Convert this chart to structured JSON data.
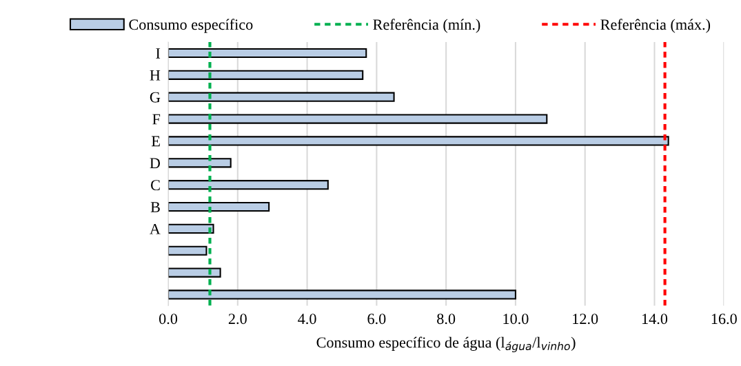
{
  "chart_data": {
    "type": "bar",
    "orientation": "horizontal",
    "xlabel": "Consumo específico de água (l$_{água}$/l$_{vinho}$)",
    "categories": [
      "I",
      "H",
      "G",
      "F",
      "E",
      "D",
      "C",
      "B",
      "A",
      null,
      null,
      null
    ],
    "series": [
      {
        "name": "Consumo específico",
        "color": "#b9cde5",
        "values": [
          5.7,
          5.6,
          6.5,
          10.9,
          14.4,
          1.8,
          4.6,
          2.9,
          1.3,
          1.1,
          1.5,
          10.0
        ]
      }
    ],
    "ref_lines": [
      {
        "axis": "x",
        "value": 1.2,
        "label": "Referência (mín.)",
        "color": "#00b050",
        "line_style": "dashed"
      },
      {
        "axis": "x",
        "value": 14.3,
        "label": "Referência (máx.)",
        "color": "#ff0000",
        "line_style": "dashed"
      }
    ],
    "xlim": [
      0,
      16
    ],
    "xticks": [
      {
        "value": 0,
        "label": "0.0"
      },
      {
        "value": 2,
        "label": "2.0"
      },
      {
        "value": 4,
        "label": "4.0"
      },
      {
        "value": 6,
        "label": "6.0"
      },
      {
        "value": 8,
        "label": "8.0"
      },
      {
        "value": 10,
        "label": "10.0"
      },
      {
        "value": 12,
        "label": "12.0"
      },
      {
        "value": 14,
        "label": "14.0"
      },
      {
        "value": 16,
        "label": "16.0"
      }
    ],
    "grid": "x",
    "legend": "top"
  }
}
